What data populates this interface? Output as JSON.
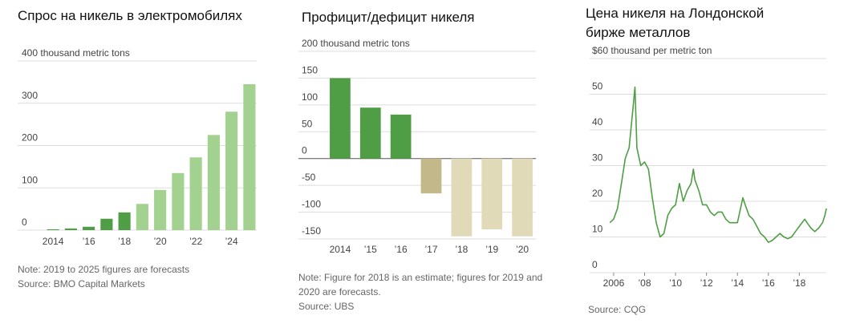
{
  "chart_data": [
    {
      "type": "bar",
      "title": "Спрос на никель в электромобилях",
      "categories": [
        "2014",
        null,
        "’16",
        null,
        "’18",
        null,
        "’20",
        null,
        "’22",
        null,
        "’24",
        null
      ],
      "values": [
        2,
        4,
        8,
        27,
        42,
        62,
        95,
        135,
        172,
        225,
        280,
        345
      ],
      "colors": [
        "#4f9e45",
        "#4f9e45",
        "#4f9e45",
        "#4f9e45",
        "#4f9e45",
        "#a3d18f",
        "#a3d18f",
        "#a3d18f",
        "#a3d18f",
        "#a3d18f",
        "#a3d18f",
        "#a3d18f"
      ],
      "ylim": [
        0,
        400
      ],
      "yticks": [
        0,
        100,
        200,
        300,
        {
          "value": 400,
          "label": "400 thousand metric tons"
        }
      ],
      "grid": true,
      "note": "Note: 2019 to 2025 figures are forecasts",
      "source": "Source: BMO Capital Markets"
    },
    {
      "type": "bar",
      "title": "Профицит/дефицит никеля",
      "categories": [
        "2014",
        "’15",
        "’16",
        "’17",
        "’18",
        "’19",
        "’20"
      ],
      "values": [
        150,
        95,
        82,
        -65,
        -145,
        -132,
        -145
      ],
      "colors": [
        "#4f9e45",
        "#4f9e45",
        "#4f9e45",
        "#c2b88a",
        "#e0dab9",
        "#e0dab9",
        "#e0dab9"
      ],
      "ylim": [
        -150,
        200
      ],
      "yticks": [
        -150,
        -100,
        -50,
        0,
        50,
        100,
        150,
        {
          "value": 200,
          "label": "200 thousand metric tons"
        }
      ],
      "grid": true,
      "note": "Note: Figure for 2018 is an estimate; figures for 2019 and 2020 are forecasts.",
      "source": "Source: UBS"
    },
    {
      "type": "line",
      "title": "Цена никеля на Лондонской бирже металлов",
      "x": [
        2005.75,
        2006.0,
        2006.25,
        2006.5,
        2006.75,
        2007.0,
        2007.25,
        2007.38,
        2007.5,
        2007.75,
        2008.0,
        2008.25,
        2008.5,
        2008.75,
        2009.0,
        2009.25,
        2009.5,
        2009.75,
        2010.0,
        2010.25,
        2010.5,
        2010.75,
        2011.0,
        2011.15,
        2011.25,
        2011.5,
        2011.75,
        2012.0,
        2012.25,
        2012.5,
        2012.75,
        2013.0,
        2013.25,
        2013.5,
        2013.75,
        2014.0,
        2014.35,
        2014.5,
        2014.75,
        2015.0,
        2015.25,
        2015.5,
        2015.75,
        2016.0,
        2016.25,
        2016.5,
        2016.75,
        2017.0,
        2017.25,
        2017.5,
        2017.75,
        2018.0,
        2018.35,
        2018.5,
        2018.75,
        2019.0,
        2019.25,
        2019.5,
        2019.65,
        2019.75
      ],
      "values": [
        14,
        15,
        18,
        25,
        32,
        35,
        46,
        52,
        35,
        30,
        31,
        29,
        21,
        14,
        10,
        11,
        16,
        18,
        19,
        25,
        20,
        23,
        25,
        29,
        26,
        23,
        19,
        19,
        17,
        16,
        17,
        17,
        15,
        14,
        14,
        14,
        21,
        19,
        16,
        15,
        13,
        11,
        10,
        8.5,
        9,
        10,
        11,
        10,
        9.5,
        10,
        11.5,
        13,
        15,
        14,
        12.5,
        11.5,
        12.5,
        14,
        16,
        18
      ],
      "color": "#4f9e45",
      "xlim": [
        2004.5,
        2019.9
      ],
      "xticks": [
        2006,
        {
          "value": 2008,
          "label": "’08"
        },
        {
          "value": 2010,
          "label": "’10"
        },
        {
          "value": 2012,
          "label": "’12"
        },
        {
          "value": 2014,
          "label": "’14"
        },
        {
          "value": 2016,
          "label": "’16"
        },
        {
          "value": 2018,
          "label": "’18"
        }
      ],
      "ylim": [
        0,
        60
      ],
      "yticks": [
        0,
        10,
        20,
        30,
        40,
        50,
        {
          "value": 60,
          "label": "$60 thousand per metric ton"
        }
      ],
      "grid": true,
      "source": "Source: CQG"
    }
  ]
}
